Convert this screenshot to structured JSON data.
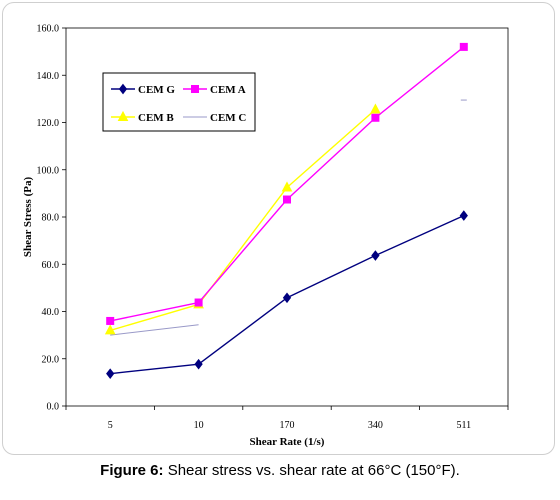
{
  "caption": {
    "label": "Figure 6:",
    "text": "Shear stress vs. shear rate at 66°C (150°F)."
  },
  "chart_data": {
    "type": "line",
    "xlabel": "Shear Rate (1/s)",
    "ylabel": "Shear Stress (Pa)",
    "categories": [
      "5",
      "10",
      "170",
      "340",
      "511"
    ],
    "ylim": [
      0,
      160
    ],
    "yticks": [
      "0.0",
      "20.0",
      "40.0",
      "60.0",
      "80.0",
      "100.0",
      "120.0",
      "140.0",
      "160.0"
    ],
    "grid": false,
    "legend_position": "top-left",
    "series": [
      {
        "name": "CEM G",
        "color": "#00007f",
        "marker": "diamond",
        "values": [
          13.7,
          17.7,
          45.8,
          63.7,
          80.6
        ]
      },
      {
        "name": "CEM A",
        "color": "#ff00ff",
        "marker": "square",
        "values": [
          36.0,
          43.8,
          87.4,
          122.0,
          152.0
        ]
      },
      {
        "name": "CEM B",
        "color": "#ffff00",
        "marker": "triangle",
        "values": [
          32.0,
          43.0,
          92.5,
          125.5,
          null
        ]
      },
      {
        "name": "CEM C",
        "color": "#9999c8",
        "marker": "none",
        "values": [
          30.0,
          34.4,
          null,
          null,
          129.5
        ]
      }
    ]
  }
}
